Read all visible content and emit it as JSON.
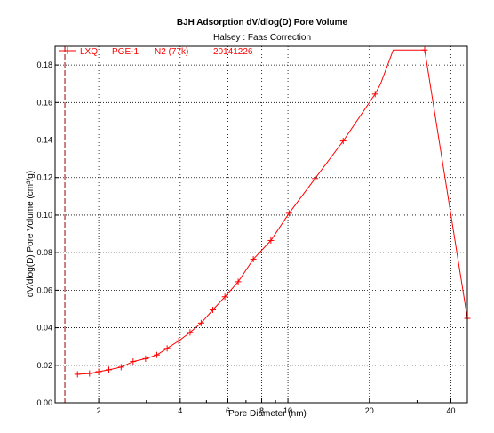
{
  "chart_data": {
    "type": "line",
    "title": "BJH Adsorption dV/dlog(D) Pore Volume",
    "subtitle": "Halsey : Faas Correction",
    "xlabel": "Pore Diameter (nm)",
    "ylabel": "dV/dlog(D) Pore Volume (cm³/g)",
    "x_scale": "log",
    "xlim": [
      1.38,
      46
    ],
    "ylim": [
      0,
      0.19
    ],
    "x_ticks": [
      {
        "value": 2,
        "label": "2"
      },
      {
        "value": 4,
        "label": "4"
      },
      {
        "value": 6,
        "label": "6"
      },
      {
        "value": 8,
        "label": "8"
      },
      {
        "value": 10,
        "label": "10"
      },
      {
        "value": 20,
        "label": "20"
      },
      {
        "value": 40,
        "label": "40"
      }
    ],
    "y_ticks": [
      {
        "value": 0.0,
        "label": "0.00"
      },
      {
        "value": 0.02,
        "label": "0.02"
      },
      {
        "value": 0.04,
        "label": "0.04"
      },
      {
        "value": 0.06,
        "label": "0.06"
      },
      {
        "value": 0.08,
        "label": "0.08"
      },
      {
        "value": 0.1,
        "label": "0.10"
      },
      {
        "value": 0.12,
        "label": "0.12"
      },
      {
        "value": 0.14,
        "label": "0.14"
      },
      {
        "value": 0.16,
        "label": "0.16"
      },
      {
        "value": 0.18,
        "label": "0.18"
      }
    ],
    "x_minor_ticks": [
      3,
      5,
      7,
      9,
      30
    ],
    "grid": true,
    "legend": {
      "position": "top-left",
      "items": [
        "LXQ",
        "PGE-1",
        "N2 (77k)",
        "20141226"
      ]
    },
    "reference_line": {
      "x": 1.5,
      "style": "dashed",
      "color": "#a00000"
    },
    "series": [
      {
        "color": "#ff0000",
        "marker": "plus",
        "points": [
          {
            "x": 1.67,
            "y": 0.0152,
            "marker": true
          },
          {
            "x": 1.85,
            "y": 0.0156,
            "marker": true
          },
          {
            "x": 2.0,
            "y": 0.0166,
            "marker": true
          },
          {
            "x": 2.18,
            "y": 0.0176,
            "marker": true
          },
          {
            "x": 2.42,
            "y": 0.019,
            "marker": true
          },
          {
            "x": 2.68,
            "y": 0.022,
            "marker": true
          },
          {
            "x": 2.98,
            "y": 0.0235,
            "marker": true
          },
          {
            "x": 3.28,
            "y": 0.0255,
            "marker": true
          },
          {
            "x": 3.58,
            "y": 0.029,
            "marker": true
          },
          {
            "x": 3.95,
            "y": 0.033,
            "marker": true
          },
          {
            "x": 4.35,
            "y": 0.0375,
            "marker": true
          },
          {
            "x": 4.78,
            "y": 0.0425,
            "marker": true
          },
          {
            "x": 5.28,
            "y": 0.0495,
            "marker": true
          },
          {
            "x": 5.85,
            "y": 0.0565,
            "marker": true
          },
          {
            "x": 6.55,
            "y": 0.0645,
            "marker": true
          },
          {
            "x": 7.45,
            "y": 0.0765,
            "marker": true
          },
          {
            "x": 8.65,
            "y": 0.0865,
            "marker": true
          },
          {
            "x": 10.1,
            "y": 0.101,
            "marker": true
          },
          {
            "x": 12.6,
            "y": 0.1195,
            "marker": true
          },
          {
            "x": 16.0,
            "y": 0.1395,
            "marker": true
          },
          {
            "x": 21.0,
            "y": 0.1645,
            "marker": true
          },
          {
            "x": 22.0,
            "y": 0.17,
            "marker": false
          },
          {
            "x": 24.5,
            "y": 0.188,
            "marker": false
          },
          {
            "x": 32.0,
            "y": 0.188,
            "marker": true
          },
          {
            "x": 46.0,
            "y": 0.045,
            "marker": true
          }
        ]
      }
    ]
  }
}
